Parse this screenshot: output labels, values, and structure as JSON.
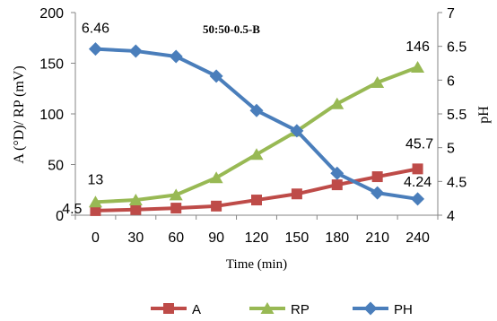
{
  "chart_data": {
    "type": "line",
    "title": "50:50-0.5-B",
    "xlabel": "Time (min)",
    "ylabel_left": "A (°D)/ RP (mV)",
    "ylabel_right": "pH",
    "categories": [
      "0",
      "30",
      "60",
      "90",
      "120",
      "150",
      "180",
      "210",
      "240"
    ],
    "x": [
      0,
      30,
      60,
      90,
      120,
      150,
      180,
      210,
      240
    ],
    "ylim_left": [
      0,
      200
    ],
    "yticks_left": [
      "0",
      "50",
      "100",
      "150",
      "200"
    ],
    "ylim_right": [
      4,
      7
    ],
    "yticks_right": [
      "4",
      "4.5",
      "5",
      "5.5",
      "6",
      "6.5",
      "7"
    ],
    "grid": false,
    "legend_position": "bottom",
    "series": [
      {
        "name": "A",
        "axis": "left",
        "color": "#be4b48",
        "marker": "square",
        "values": [
          4.5,
          5.5,
          7,
          9,
          15,
          21,
          30,
          38,
          45.7
        ]
      },
      {
        "name": "RP",
        "axis": "left",
        "color": "#98b954",
        "marker": "triangle",
        "values": [
          13,
          15,
          20,
          37,
          60,
          83,
          110,
          131,
          146
        ]
      },
      {
        "name": "PH",
        "axis": "right",
        "color": "#4a7ebb",
        "marker": "diamond",
        "values": [
          6.46,
          6.43,
          6.35,
          6.06,
          5.55,
          5.25,
          4.62,
          4.33,
          4.24
        ]
      }
    ],
    "data_labels": [
      {
        "series": "PH",
        "index": 0,
        "text": "6.46"
      },
      {
        "series": "RP",
        "index": 8,
        "text": "146"
      },
      {
        "series": "A",
        "index": 8,
        "text": "45.7"
      },
      {
        "series": "PH",
        "index": 8,
        "text": "4.24"
      },
      {
        "series": "RP",
        "index": 0,
        "text": "13"
      },
      {
        "series": "A",
        "index": 0,
        "text": "4.5"
      }
    ]
  }
}
